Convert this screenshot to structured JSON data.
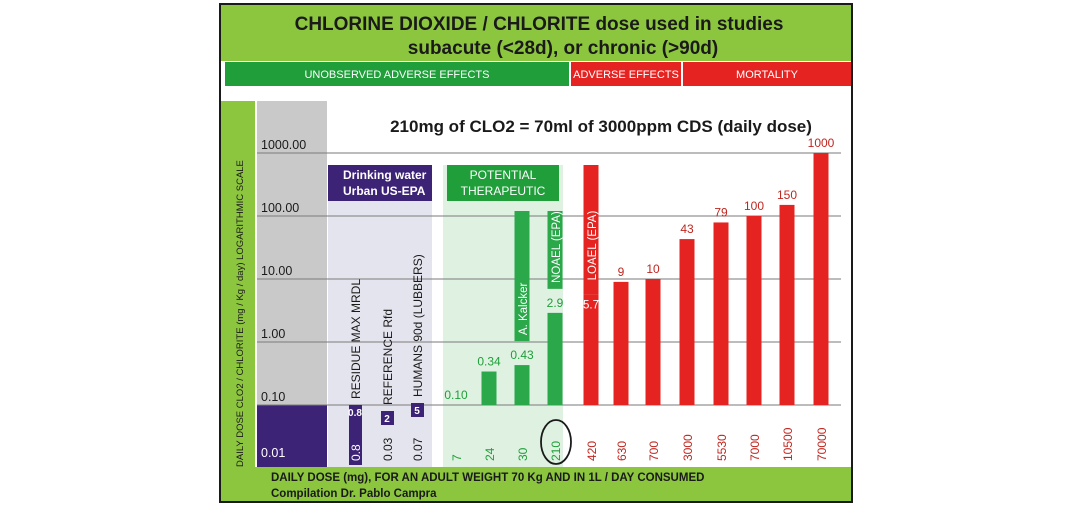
{
  "header": {
    "title_line1": "CHLORINE DIOXIDE / CHLORITE dose used in studies",
    "title_line2": "subacute (<28d), or chronic (>90d)"
  },
  "zones": {
    "unobserved": "UNOBSERVED ADVERSE EFFECTS",
    "adverse": "ADVERSE EFFECTS",
    "mortality": "MORTALITY"
  },
  "equation": "210mg of CLO2 = 70ml of 3000ppm CDS (daily dose)",
  "footer": {
    "line1": "DAILY DOSE (mg), FOR AN ADULT WEIGHT 70 Kg AND IN 1L / DAY CONSUMED",
    "line2": "Compilation Dr. Pablo Campra"
  },
  "colors": {
    "green_bar": "#8cc63f",
    "zone_green": "#1f9e3a",
    "zone_red": "#e52421",
    "purple": "#3d2376",
    "bar_green": "#2aa84a",
    "bar_red": "#e52421",
    "therapeutic_bg": "#dff2e1"
  },
  "chart_data": {
    "type": "bar",
    "scale": "log",
    "ylabel": "DAILY DOSE CLO2 / CHLORITE (mg / Kg / day) LOGARITHMIC SCALE",
    "xlabel": "DAILY DOSE (mg), FOR AN ADULT WEIGHT 70 Kg AND IN 1L / DAY CONSUMED",
    "ylim": [
      0.01,
      1000
    ],
    "yticks": [
      "1000.00",
      "100.00",
      "10.00",
      "1.00",
      "0.10",
      "0.01"
    ],
    "groups": {
      "drinking_water": "Drinking water Urban US-EPA",
      "therapeutic": "POTENTIAL THERAPEUTIC"
    },
    "references": [
      {
        "label": "RESIDUE MAX MRDL",
        "badge": "0.8",
        "dose": "0.8"
      },
      {
        "label": "REFERENCE Rfd",
        "badge": "2",
        "dose": "0.03"
      },
      {
        "label": "HUMANS 90d (LUBBERS)",
        "badge": "5",
        "dose": "0.07"
      }
    ],
    "bars": [
      {
        "dose": "7",
        "value": 0.1,
        "label": "0.10",
        "group": "green"
      },
      {
        "dose": "24",
        "value": 0.34,
        "label": "0.34",
        "group": "green"
      },
      {
        "dose": "30",
        "value": 0.43,
        "label": "0.43",
        "group": "green",
        "annotation": "A. Kalcker"
      },
      {
        "dose": "210",
        "value": 2.9,
        "label": "2.9",
        "group": "green",
        "annotation": "NOAEL (EPA)",
        "circled": true
      },
      {
        "dose": "420",
        "value": 5.7,
        "label": "5.7",
        "group": "red",
        "annotation": "LOAEL (EPA)"
      },
      {
        "dose": "630",
        "value": 9,
        "label": "9",
        "group": "red"
      },
      {
        "dose": "700",
        "value": 10,
        "label": "10",
        "group": "red"
      },
      {
        "dose": "3000",
        "value": 43,
        "label": "43",
        "group": "red"
      },
      {
        "dose": "5530",
        "value": 79,
        "label": "79",
        "group": "red"
      },
      {
        "dose": "7000",
        "value": 100,
        "label": "100",
        "group": "red"
      },
      {
        "dose": "10500",
        "value": 150,
        "label": "150",
        "group": "red"
      },
      {
        "dose": "70000",
        "value": 1000,
        "label": "1000",
        "group": "red"
      }
    ]
  }
}
